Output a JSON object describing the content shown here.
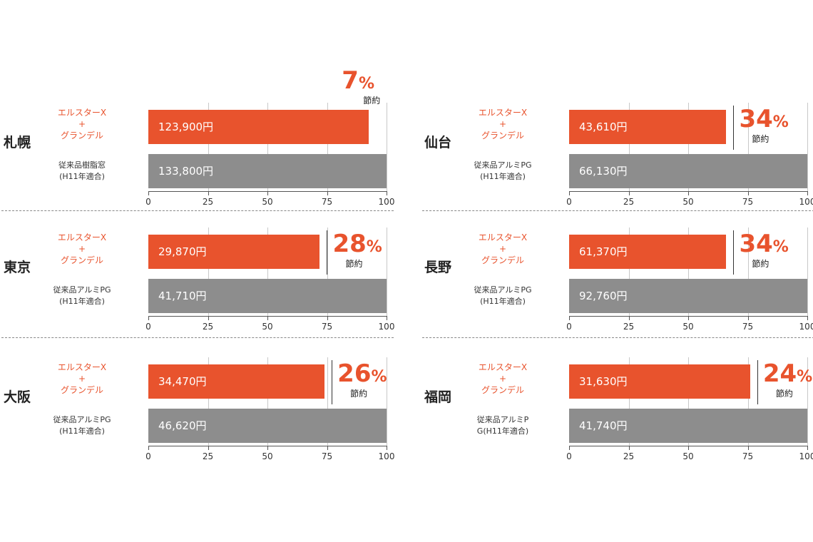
{
  "colors": {
    "new": "#e8532d",
    "old": "#8d8d8d"
  },
  "chart_data": [
    {
      "type": "bar",
      "city": "札幌",
      "percent": "7",
      "percent_sign": "%",
      "saving_label": "節約",
      "new_label": [
        "エルスターX",
        "+",
        "グランデル"
      ],
      "old_label": [
        "従来品樹脂窓",
        "(H11年適合)"
      ],
      "new_value_text": "123,900円",
      "old_value_text": "133,800円",
      "values": [
        92.6,
        100
      ],
      "ticks": [
        "0",
        "25",
        "50",
        "75",
        "100"
      ],
      "ylim": [
        0,
        100
      ]
    },
    {
      "type": "bar",
      "city": "仙台",
      "percent": "34",
      "percent_sign": "%",
      "saving_label": "節約",
      "new_label": [
        "エルスターX",
        "+",
        "グランデル"
      ],
      "old_label": [
        "従来品アルミPG",
        "(H11年適合)"
      ],
      "new_value_text": "43,610円",
      "old_value_text": "66,130円",
      "values": [
        66,
        100
      ],
      "ticks": [
        "0",
        "25",
        "50",
        "75",
        "100"
      ],
      "ylim": [
        0,
        100
      ]
    },
    {
      "type": "bar",
      "city": "東京",
      "percent": "28",
      "percent_sign": "%",
      "saving_label": "節約",
      "new_label": [
        "エルスターX",
        "+",
        "グランデル"
      ],
      "old_label": [
        "従来品アルミPG",
        "(H11年適合)"
      ],
      "new_value_text": "29,870円",
      "old_value_text": "41,710円",
      "values": [
        72,
        100
      ],
      "ticks": [
        "0",
        "25",
        "50",
        "75",
        "100"
      ],
      "ylim": [
        0,
        100
      ]
    },
    {
      "type": "bar",
      "city": "長野",
      "percent": "34",
      "percent_sign": "%",
      "saving_label": "節約",
      "new_label": [
        "エルスターX",
        "+",
        "グランデル"
      ],
      "old_label": [
        "従来品アルミPG",
        "(H11年適合)"
      ],
      "new_value_text": "61,370円",
      "old_value_text": "92,760円",
      "values": [
        66,
        100
      ],
      "ticks": [
        "0",
        "25",
        "50",
        "75",
        "100"
      ],
      "ylim": [
        0,
        100
      ]
    },
    {
      "type": "bar",
      "city": "大阪",
      "percent": "26",
      "percent_sign": "%",
      "saving_label": "節約",
      "new_label": [
        "エルスターX",
        "+",
        "グランデル"
      ],
      "old_label": [
        "従来品アルミPG",
        "(H11年適合)"
      ],
      "new_value_text": "34,470円",
      "old_value_text": "46,620円",
      "values": [
        74,
        100
      ],
      "ticks": [
        "0",
        "25",
        "50",
        "75",
        "100"
      ],
      "ylim": [
        0,
        100
      ]
    },
    {
      "type": "bar",
      "city": "福岡",
      "percent": "24",
      "percent_sign": "%",
      "saving_label": "節約",
      "new_label": [
        "エルスターX",
        "+",
        "グランデル"
      ],
      "old_label": [
        "従来品アルミP",
        "G(H11年適合)"
      ],
      "new_value_text": "31,630円",
      "old_value_text": "41,740円",
      "values": [
        76,
        100
      ],
      "ticks": [
        "0",
        "25",
        "50",
        "75",
        "100"
      ],
      "ylim": [
        0,
        100
      ]
    }
  ]
}
